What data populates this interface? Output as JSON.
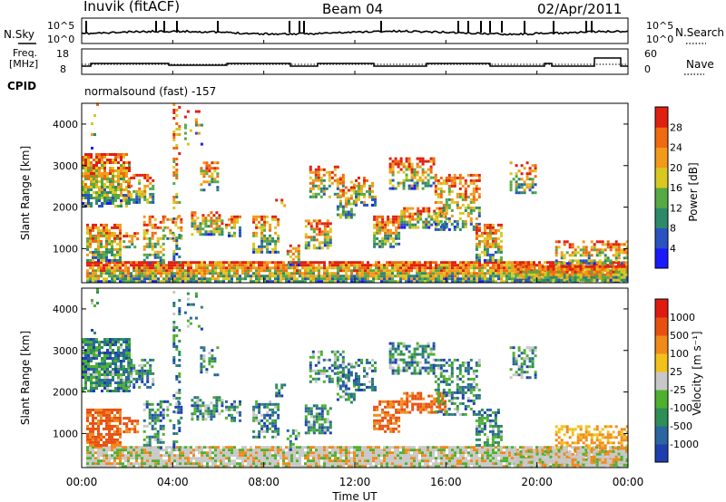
{
  "header": {
    "station": "Inuvik (fitACF)",
    "beam": "Beam 04",
    "date": "02/Apr/2011"
  },
  "noise_panel": {
    "left_label": "N.Sky",
    "right_label": "N.Search",
    "tick_top": "10^5",
    "tick_bottom": "10^0"
  },
  "freq_panel": {
    "left_label_1": "Freq.",
    "left_label_2": "[MHz]",
    "left_tick_top": "18",
    "left_tick_bottom": "8",
    "right_label": "Nave",
    "right_tick_top": "60",
    "right_tick_bottom": "0",
    "cpid_label": "CPID",
    "cpid_text": "normalsound (fast) -157"
  },
  "chart_data": [
    {
      "type": "heatmap",
      "title": "",
      "ylabel": "Slant Range [km]",
      "xlabel": "",
      "ylim": [
        180,
        4500
      ],
      "yticks": [
        "1000",
        "2000",
        "3000",
        "4000"
      ],
      "colorbar": {
        "label": "Power [dB]",
        "ticks": [
          "4",
          "8",
          "12",
          "16",
          "20",
          "24",
          "28"
        ],
        "colors": [
          "#1a1aff",
          "#2a52c0",
          "#2c8a6a",
          "#55aa44",
          "#d8c820",
          "#f39a1a",
          "#ef6a10",
          "#e02010"
        ]
      }
    },
    {
      "type": "heatmap",
      "title": "",
      "ylabel": "Slant Range [km]",
      "xlabel": "Time UT",
      "ylim": [
        180,
        4500
      ],
      "yticks": [
        "1000",
        "2000",
        "3000",
        "4000"
      ],
      "xticks": [
        "00:00",
        "04:00",
        "08:00",
        "12:00",
        "16:00",
        "20:00",
        "00:00"
      ],
      "colorbar": {
        "label": "Velocity [m s⁻¹]",
        "ticks": [
          "1000",
          "500",
          "100",
          "25",
          "-25",
          "-100",
          "-500",
          "-1000"
        ],
        "colors": [
          "#1f3fb0",
          "#2a66a0",
          "#2e8e58",
          "#4fb030",
          "#c8c8c8",
          "#f2c21a",
          "#f08a1a",
          "#e85010",
          "#e01a10"
        ]
      }
    }
  ]
}
